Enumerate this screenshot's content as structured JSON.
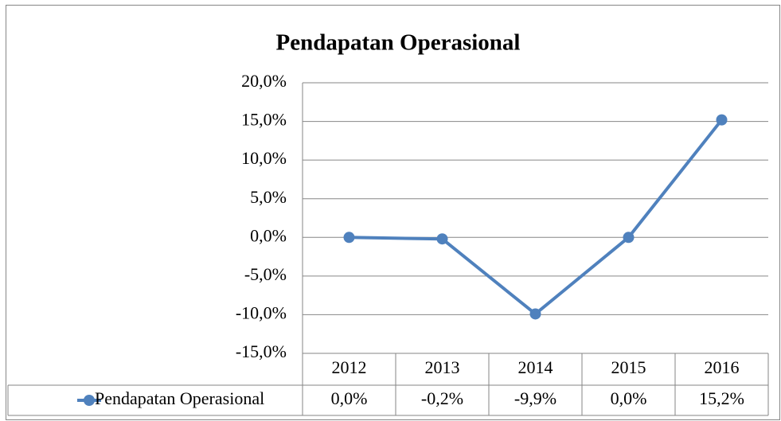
{
  "chart_data": {
    "type": "line",
    "title": "Pendapatan Operasional",
    "categories": [
      "2012",
      "2013",
      "2014",
      "2015",
      "2016"
    ],
    "series": [
      {
        "name": "Pendapatan Operasional",
        "color": "#4f81bd",
        "values": [
          0,
          -0.2,
          -9.9,
          0,
          15.2
        ],
        "value_labels": [
          "0,0%",
          "-0,2%",
          "-9,9%",
          "0,0%",
          "15,2%"
        ]
      }
    ],
    "ylim": [
      -15,
      20
    ],
    "yticks": [
      {
        "value": -15,
        "label": "-15,0%"
      },
      {
        "value": -10,
        "label": "-10,0%"
      },
      {
        "value": -5,
        "label": "-5,0%"
      },
      {
        "value": 0,
        "label": "0,0%"
      },
      {
        "value": 5,
        "label": "5,0%"
      },
      {
        "value": 10,
        "label": "10,0%"
      },
      {
        "value": 15,
        "label": "15,0%"
      },
      {
        "value": 20,
        "label": "20,0%"
      }
    ],
    "grid": true
  }
}
